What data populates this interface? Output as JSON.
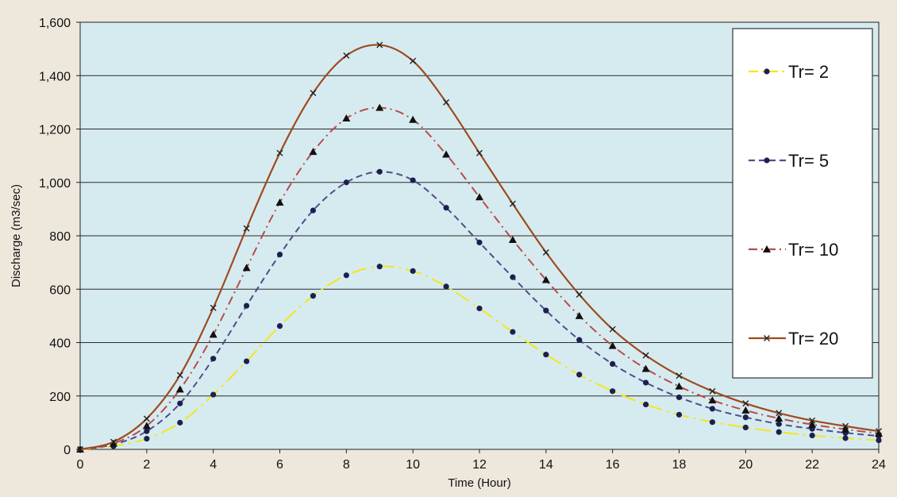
{
  "chart_data": {
    "type": "line",
    "title": "",
    "xlabel": "Time (Hour)",
    "ylabel": "Discharge (m3/sec)",
    "xlim": [
      0,
      24
    ],
    "ylim": [
      0,
      1600
    ],
    "xticks": [
      0,
      2,
      4,
      6,
      8,
      10,
      12,
      14,
      16,
      18,
      20,
      22,
      24
    ],
    "yticks": [
      0,
      200,
      400,
      600,
      800,
      1000,
      1200,
      1400,
      1600
    ],
    "ytick_labels": [
      "0",
      "200",
      "400",
      "600",
      "800",
      "1,000",
      "1,200",
      "1,400",
      "1,600"
    ],
    "grid": "horizontal",
    "legend_position": "right",
    "plot_background": "#d6ebf0",
    "x": [
      0,
      1,
      2,
      3,
      4,
      5,
      6,
      7,
      8,
      9,
      10,
      11,
      12,
      13,
      14,
      15,
      16,
      17,
      18,
      19,
      20,
      21,
      22,
      23,
      24
    ],
    "series": [
      {
        "name": "Tr= 2",
        "color": "#f5e51e",
        "line_style": "long-dash-dot",
        "marker": "circle",
        "marker_color": "#1c2050",
        "values": [
          0,
          12,
          40,
          100,
          205,
          330,
          462,
          575,
          652,
          685,
          668,
          610,
          528,
          440,
          355,
          280,
          218,
          168,
          130,
          102,
          82,
          65,
          52,
          42,
          34
        ]
      },
      {
        "name": "Tr= 5",
        "color": "#524c8c",
        "line_style": "dashed",
        "marker": "circle",
        "marker_color": "#1c2050",
        "values": [
          0,
          18,
          68,
          172,
          340,
          538,
          730,
          895,
          1000,
          1040,
          1008,
          905,
          775,
          645,
          520,
          410,
          320,
          250,
          195,
          152,
          120,
          95,
          77,
          62,
          50
        ]
      },
      {
        "name": "Tr= 10",
        "color": "#b84c4c",
        "line_style": "dash-dot",
        "marker": "triangle",
        "marker_color": "#111111",
        "values": [
          0,
          22,
          88,
          225,
          430,
          680,
          925,
          1115,
          1240,
          1280,
          1235,
          1105,
          945,
          785,
          635,
          500,
          388,
          302,
          236,
          184,
          146,
          116,
          93,
          75,
          60
        ]
      },
      {
        "name": "Tr= 20",
        "color": "#9e4a1e",
        "line_style": "solid",
        "marker": "x",
        "marker_color": "#222222",
        "values": [
          0,
          28,
          115,
          278,
          530,
          828,
          1110,
          1335,
          1475,
          1515,
          1455,
          1300,
          1110,
          920,
          738,
          580,
          450,
          352,
          276,
          218,
          172,
          136,
          108,
          87,
          68
        ]
      }
    ]
  }
}
